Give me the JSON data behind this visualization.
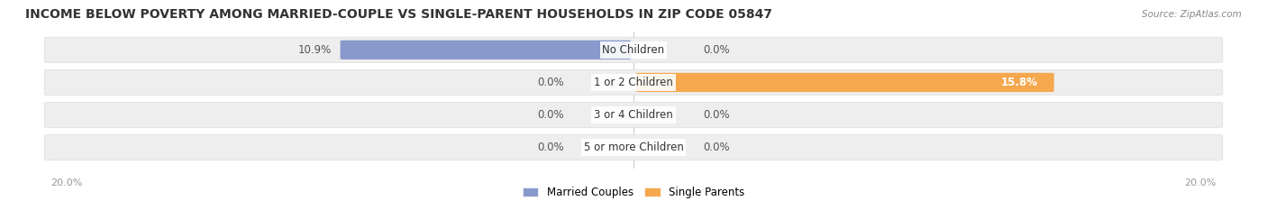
{
  "title": "INCOME BELOW POVERTY AMONG MARRIED-COUPLE VS SINGLE-PARENT HOUSEHOLDS IN ZIP CODE 05847",
  "source": "Source: ZipAtlas.com",
  "categories": [
    "No Children",
    "1 or 2 Children",
    "3 or 4 Children",
    "5 or more Children"
  ],
  "married_values": [
    10.9,
    0.0,
    0.0,
    0.0
  ],
  "single_values": [
    0.0,
    15.8,
    0.0,
    0.0
  ],
  "max_value": 20.0,
  "married_color": "#8899cc",
  "single_color": "#f5a84e",
  "bar_bg_color": "#eeeeee",
  "bg_color": "#ffffff",
  "title_fontsize": 10,
  "label_fontsize": 8.5,
  "category_fontsize": 8.5,
  "legend_labels": [
    "Married Couples",
    "Single Parents"
  ],
  "axis_label": "20.0%"
}
